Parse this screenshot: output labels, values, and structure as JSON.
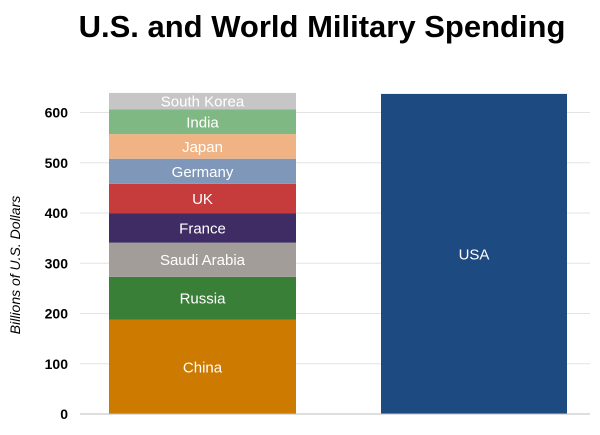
{
  "chart_data": {
    "type": "bar",
    "title": "U.S. and World Military Spending",
    "xlabel": "",
    "ylabel": "Billions of U.S. Dollars",
    "ylim": [
      0,
      640
    ],
    "yticks": [
      0,
      100,
      200,
      300,
      400,
      500,
      600
    ],
    "grid": true,
    "legend": "none",
    "bars": [
      {
        "stacked": true,
        "segments": [
          {
            "name": "China",
            "value": 188,
            "color": "#cc7a00"
          },
          {
            "name": "Russia",
            "value": 85,
            "color": "#3a7f37"
          },
          {
            "name": "Saudi Arabia",
            "value": 68,
            "color": "#a29d98"
          },
          {
            "name": "France",
            "value": 58,
            "color": "#3f2c64"
          },
          {
            "name": "UK",
            "value": 59,
            "color": "#c63b3b"
          },
          {
            "name": "Germany",
            "value": 50,
            "color": "#7f97b9"
          },
          {
            "name": "Japan",
            "value": 49,
            "color": "#f0b484"
          },
          {
            "name": "India",
            "value": 49,
            "color": "#7fb882"
          },
          {
            "name": "South Korea",
            "value": 33,
            "color": "#c6c6c6"
          }
        ]
      },
      {
        "stacked": false,
        "segments": [
          {
            "name": "USA",
            "value": 637,
            "color": "#1d4a80"
          }
        ]
      }
    ]
  }
}
